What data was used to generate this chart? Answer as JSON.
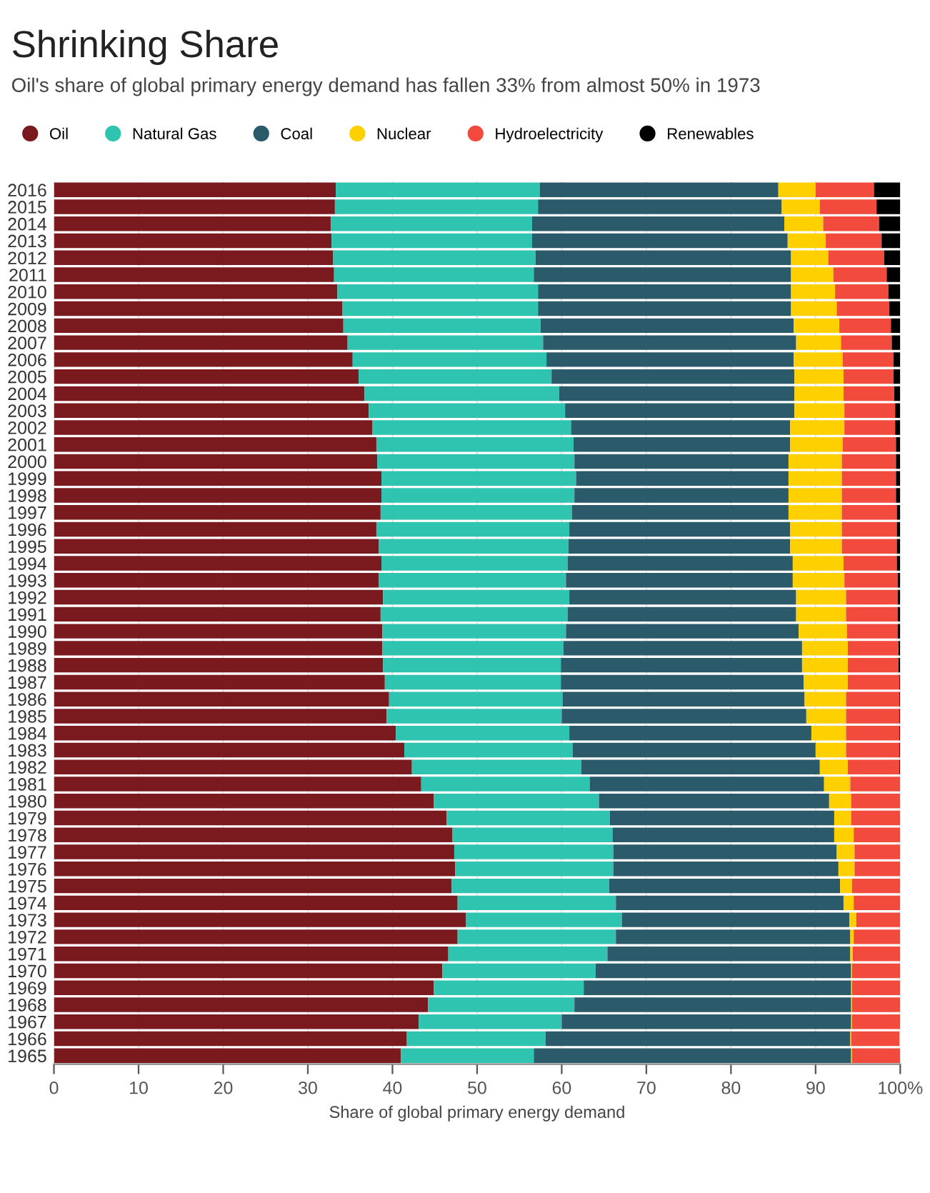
{
  "chart_data": {
    "type": "bar",
    "orientation": "horizontal",
    "stacked": true,
    "title": "Shrinking Share",
    "subtitle": "Oil's share of global primary energy demand has fallen 33% from almost 50% in 1973",
    "xlabel": "Share of global primary energy demand",
    "categories": [
      "2016",
      "2015",
      "2014",
      "2013",
      "2012",
      "2011",
      "2010",
      "2009",
      "2008",
      "2007",
      "2006",
      "2005",
      "2004",
      "2003",
      "2002",
      "2001",
      "2000",
      "1999",
      "1998",
      "1997",
      "1996",
      "1995",
      "1994",
      "1993",
      "1992",
      "1991",
      "1990",
      "1989",
      "1988",
      "1987",
      "1986",
      "1985",
      "1984",
      "1983",
      "1982",
      "1981",
      "1980",
      "1979",
      "1978",
      "1977",
      "1976",
      "1975",
      "1974",
      "1973",
      "1972",
      "1971",
      "1970",
      "1969",
      "1968",
      "1967",
      "1966",
      "1965"
    ],
    "series": [
      {
        "name": "Oil",
        "color": "#7a1a1f",
        "values": [
          33.3,
          33.2,
          32.7,
          32.8,
          33.0,
          33.1,
          33.5,
          34.1,
          34.2,
          34.7,
          35.3,
          36.0,
          36.7,
          37.2,
          37.6,
          38.1,
          38.2,
          38.7,
          38.7,
          38.6,
          38.1,
          38.4,
          38.7,
          38.4,
          38.9,
          38.6,
          38.8,
          38.8,
          38.9,
          39.1,
          39.6,
          39.3,
          40.4,
          41.4,
          42.3,
          43.4,
          44.9,
          46.4,
          47.1,
          47.3,
          47.4,
          47.0,
          47.7,
          48.7,
          47.7,
          46.6,
          45.9,
          44.9,
          44.2,
          43.1,
          41.7,
          41.0
        ]
      },
      {
        "name": "Natural Gas",
        "color": "#2ec4b0",
        "values": [
          24.1,
          24.0,
          23.8,
          23.7,
          23.9,
          23.6,
          23.7,
          23.1,
          23.3,
          23.1,
          22.9,
          22.8,
          23.0,
          23.2,
          23.5,
          23.3,
          23.3,
          23.0,
          22.8,
          22.6,
          22.8,
          22.4,
          22.0,
          22.1,
          22.0,
          22.1,
          21.7,
          21.4,
          21.0,
          20.8,
          20.5,
          20.7,
          20.5,
          19.9,
          20.0,
          19.9,
          19.5,
          19.3,
          18.9,
          18.8,
          18.7,
          18.6,
          18.7,
          18.4,
          18.7,
          18.8,
          18.1,
          17.7,
          17.3,
          16.9,
          16.4,
          15.7
        ]
      },
      {
        "name": "Coal",
        "color": "#2b5a6b",
        "values": [
          28.2,
          28.8,
          29.8,
          30.2,
          30.2,
          30.4,
          29.9,
          29.9,
          29.9,
          29.9,
          29.2,
          28.7,
          27.8,
          27.1,
          25.9,
          25.6,
          25.3,
          25.1,
          25.3,
          25.6,
          26.1,
          26.2,
          26.6,
          26.8,
          26.8,
          27.0,
          27.5,
          28.2,
          28.5,
          28.7,
          28.6,
          28.9,
          28.6,
          28.7,
          28.2,
          27.7,
          27.2,
          26.5,
          26.2,
          26.4,
          26.6,
          27.3,
          26.9,
          26.9,
          27.7,
          28.7,
          30.2,
          31.6,
          32.7,
          34.2,
          36.0,
          37.5
        ]
      },
      {
        "name": "Nuclear",
        "color": "#ffd000",
        "values": [
          4.4,
          4.5,
          4.6,
          4.5,
          4.4,
          5.0,
          5.2,
          5.4,
          5.4,
          5.3,
          5.8,
          5.8,
          5.8,
          5.9,
          6.4,
          6.2,
          6.3,
          6.3,
          6.3,
          6.3,
          6.1,
          6.1,
          6.0,
          6.1,
          5.9,
          5.9,
          5.7,
          5.4,
          5.4,
          5.2,
          4.9,
          4.7,
          4.1,
          3.6,
          3.3,
          3.1,
          2.6,
          2.0,
          2.3,
          2.1,
          1.9,
          1.4,
          1.2,
          0.8,
          0.4,
          0.3,
          0.1,
          0.1,
          0.1,
          0.1,
          0.1,
          0.1
        ]
      },
      {
        "name": "Hydroelectricity",
        "color": "#f34a3e",
        "values": [
          6.9,
          6.7,
          6.6,
          6.6,
          6.6,
          6.3,
          6.3,
          6.2,
          6.1,
          6.0,
          6.0,
          5.9,
          6.0,
          6.0,
          6.0,
          6.3,
          6.4,
          6.4,
          6.4,
          6.5,
          6.5,
          6.5,
          6.3,
          6.3,
          6.1,
          6.1,
          6.0,
          6.0,
          6.0,
          6.1,
          6.3,
          6.3,
          6.3,
          6.3,
          6.1,
          5.9,
          5.8,
          5.8,
          5.5,
          5.4,
          5.4,
          5.7,
          5.5,
          5.2,
          5.5,
          5.6,
          5.7,
          5.7,
          5.7,
          5.7,
          5.7,
          5.7
        ]
      },
      {
        "name": "Renewables",
        "color": "#000000",
        "values": [
          3.1,
          2.8,
          2.5,
          2.2,
          1.9,
          1.6,
          1.4,
          1.3,
          1.1,
          1.0,
          0.8,
          0.8,
          0.7,
          0.6,
          0.6,
          0.5,
          0.5,
          0.5,
          0.5,
          0.4,
          0.4,
          0.4,
          0.4,
          0.3,
          0.3,
          0.3,
          0.3,
          0.2,
          0.2,
          0.1,
          0.1,
          0.1,
          0.1,
          0.1,
          0.1,
          0,
          0,
          0,
          0,
          0,
          0,
          0,
          0,
          0,
          0,
          0,
          0,
          0,
          0,
          0,
          0,
          0
        ]
      }
    ],
    "xlim": [
      0,
      100
    ],
    "xticks": [
      0,
      10,
      20,
      30,
      40,
      50,
      60,
      70,
      80,
      90,
      {
        "value": 100,
        "label": "100%"
      }
    ],
    "grid": "x",
    "legend": "top left",
    "marker": "circle"
  }
}
